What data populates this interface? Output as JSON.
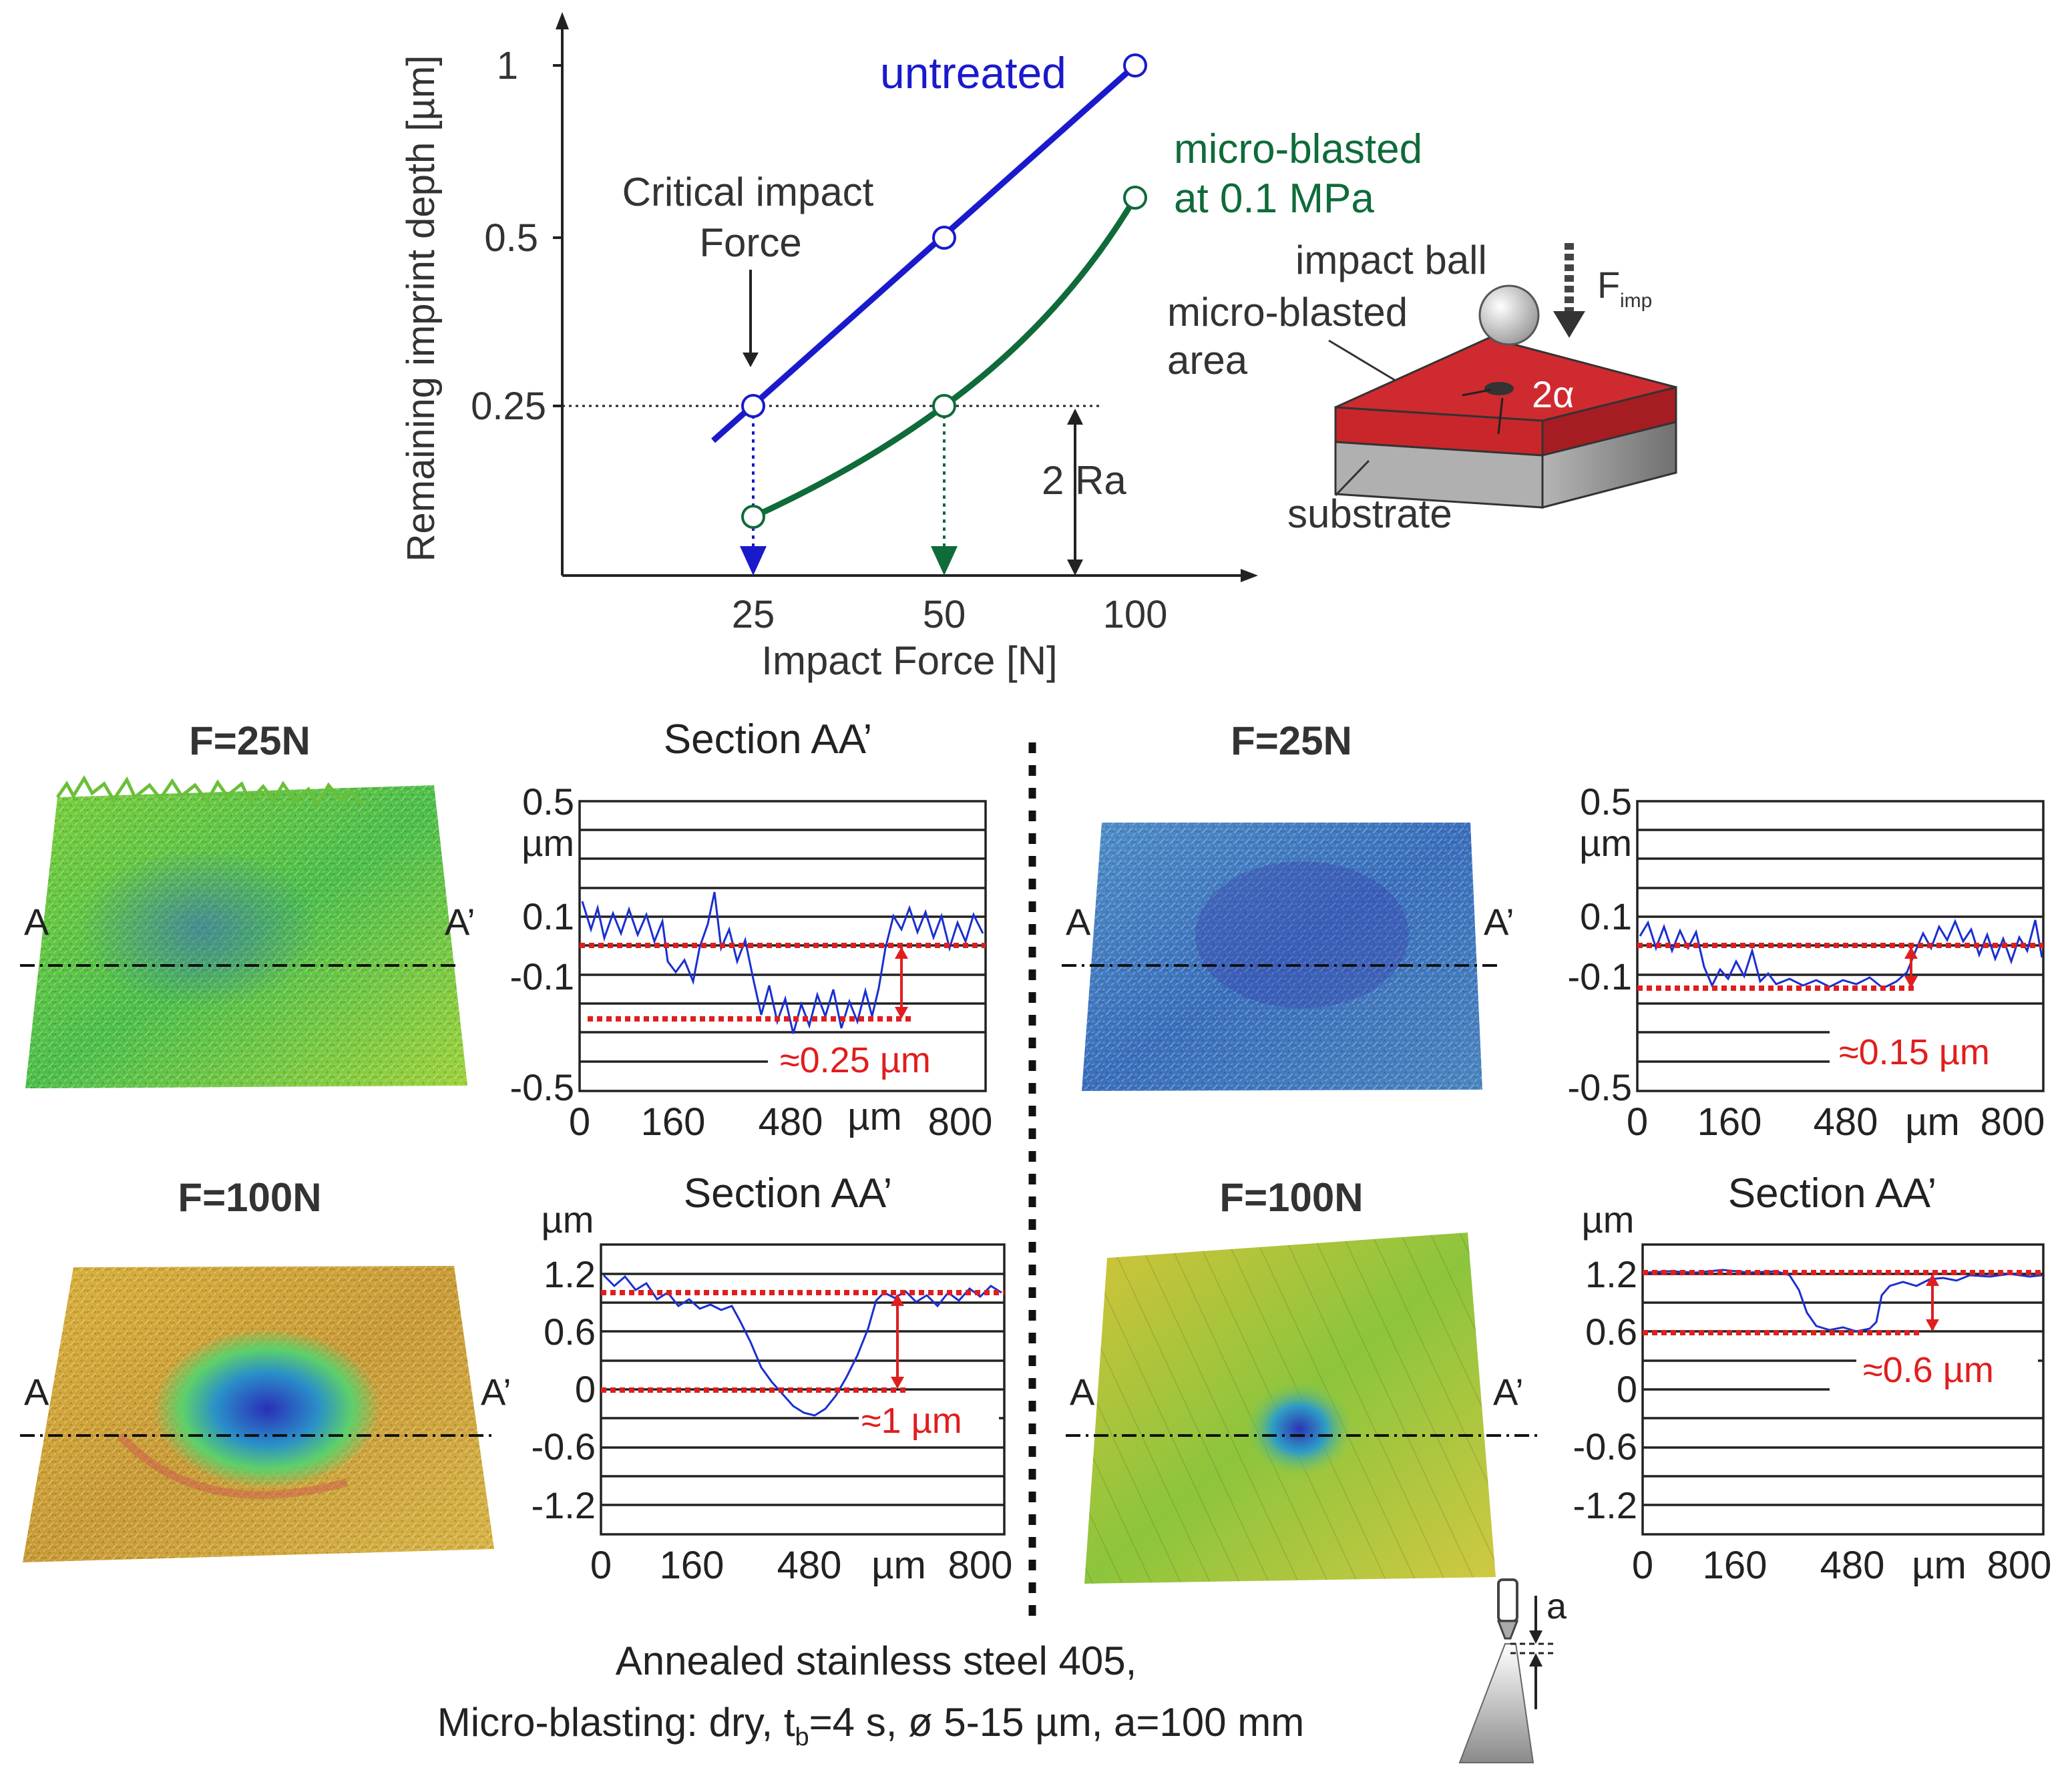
{
  "main_chart": {
    "ylabel": "Remaining imprint depth [µm]",
    "xlabel": "Impact Force [N]",
    "x_ticks": [
      "25",
      "50",
      "100"
    ],
    "y_ticks": [
      "0.25",
      "0.5",
      "1"
    ],
    "series_untreated_label": "untreated",
    "series_blasted_label_1": "micro-blasted",
    "series_blasted_label_2": "at 0.1 MPa",
    "critical_label_1": "Critical impact",
    "critical_label_2": "Force",
    "ra_label": "2 Ra",
    "colors": {
      "untreated": "#1a1acc",
      "micro_blasted": "#0f6b3a",
      "annotation": "#e01e1e"
    }
  },
  "chart_data": [
    {
      "type": "line",
      "x": [
        "25",
        "50",
        "100"
      ],
      "xlabel": "Impact Force [N]",
      "ylabel": "Remaining imprint depth [µm]",
      "series": [
        {
          "name": "untreated",
          "values": [
            0.25,
            0.5,
            1.0
          ]
        },
        {
          "name": "micro-blasted at 0.1 MPa",
          "values": [
            0.09,
            0.25,
            0.61
          ]
        }
      ],
      "reference_line_y": 0.25
    },
    {
      "type": "line",
      "panel": "untreated F=25N",
      "title": "Section AA’",
      "ylabel": "µm",
      "xlabel": "µm",
      "y_ticks": [
        "0.5",
        "µm",
        "0.1",
        "-0.1",
        "-0.5"
      ],
      "x_ticks": [
        "0",
        "160",
        "480",
        "800"
      ],
      "annotation": "≈0.25 µm"
    },
    {
      "type": "line",
      "panel": "micro-blasted F=25N",
      "ylabel": "µm",
      "xlabel": "µm",
      "y_ticks": [
        "0.5",
        "µm",
        "0.1",
        "-0.1",
        "-0.5"
      ],
      "x_ticks": [
        "0",
        "160",
        "480",
        "800"
      ],
      "annotation": "≈0.15 µm"
    },
    {
      "type": "line",
      "panel": "untreated F=100N",
      "title": "Section AA’",
      "ylabel": "µm",
      "xlabel": "µm",
      "y_ticks": [
        "1.2",
        "0.6",
        "0",
        "-0.6",
        "-1.2"
      ],
      "x_ticks": [
        "0",
        "160",
        "480",
        "800"
      ],
      "annotation": "≈1 µm"
    },
    {
      "type": "line",
      "panel": "micro-blasted F=100N",
      "title": "Section AA’",
      "ylabel": "µm",
      "xlabel": "µm",
      "y_ticks": [
        "1.2",
        "0.6",
        "0",
        "-0.6",
        "-1.2"
      ],
      "x_ticks": [
        "0",
        "160",
        "480",
        "800"
      ],
      "annotation": "≈0.6 µm"
    }
  ],
  "inset": {
    "impact_ball": "impact ball",
    "force_label": "F",
    "force_sub": "imp",
    "area_label_1": "micro-blasted",
    "area_label_2": "area",
    "angle_label": "2α",
    "substrate_label": "substrate"
  },
  "panels": {
    "f25_left": "F=25N",
    "f25_right": "F=25N",
    "f100_left": "F=100N",
    "f100_right": "F=100N",
    "section_title_1": "Section AA’",
    "section_title_3": "Section AA’",
    "section_title_4": "Section AA’",
    "marker_a": "A",
    "marker_a_prime": "A’",
    "micro_unit": "µm",
    "ann_1": "≈0.25 µm",
    "ann_2": "≈0.15 µm",
    "ann_3": "≈1 µm",
    "ann_4": "≈0.6 µm",
    "x_ticks": [
      "0",
      "160",
      "480",
      "µm",
      "800"
    ],
    "y_ticks_small": [
      "0.5",
      "µm",
      "0.1",
      "-0.1",
      "-0.5"
    ],
    "y_ticks_large": [
      "1.2",
      "0.6",
      "0",
      "-0.6",
      "-1.2"
    ]
  },
  "caption": {
    "line1": "Annealed stainless steel  405,",
    "line2_a": "Micro-blasting: dry, t",
    "line2_sub": "b",
    "line2_b": "=4 s, ø 5-15 µm, a=100 mm",
    "nozzle_label": "a"
  }
}
